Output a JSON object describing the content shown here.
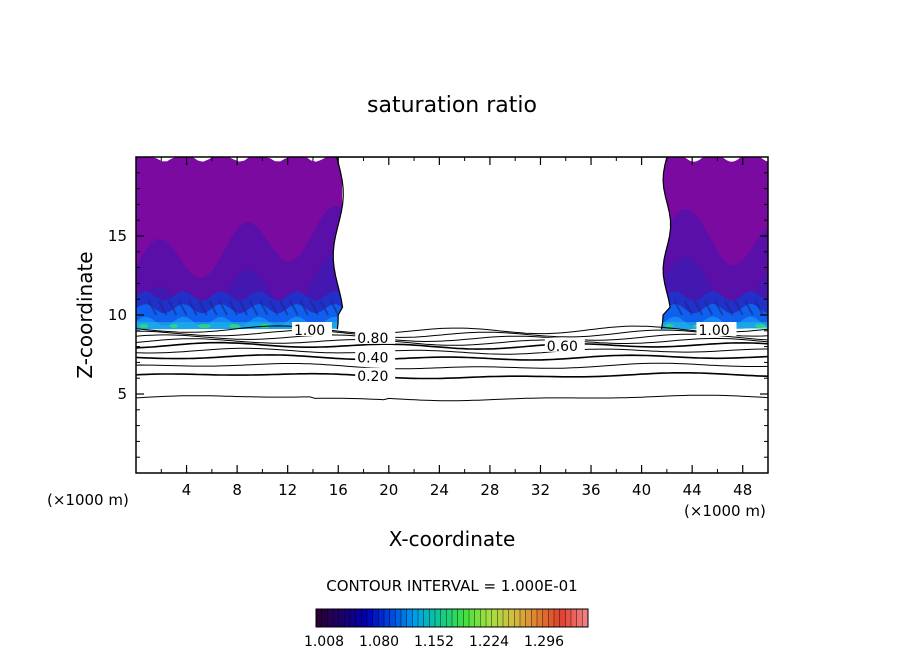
{
  "chart_data": {
    "type": "contour",
    "title": "saturation ratio",
    "xlabel": "X-coordinate",
    "ylabel": "Z-coordinate",
    "x_unit_left": "(×1000 m)",
    "x_unit_right": "(×1000 m)",
    "xlim": [
      0,
      50
    ],
    "ylim": [
      0,
      20
    ],
    "x_ticks": [
      4,
      8,
      12,
      16,
      20,
      24,
      28,
      32,
      36,
      40,
      44,
      48
    ],
    "y_ticks": [
      5,
      10,
      15
    ],
    "contour_interval_label": "CONTOUR INTERVAL = 1.000E-01",
    "contours": [
      {
        "level": 0.1,
        "label": "",
        "base_z": 4.75
      },
      {
        "level": 0.2,
        "label": "0.20",
        "label_x": 17.5,
        "base_z": 6.15
      },
      {
        "level": 0.3,
        "label": "",
        "base_z": 6.75
      },
      {
        "level": 0.4,
        "label": "0.40",
        "label_x": 17.5,
        "base_z": 7.3
      },
      {
        "level": 0.5,
        "label": "",
        "base_z": 7.7
      },
      {
        "level": 0.6,
        "label": "0.60",
        "label_x": 32.5,
        "base_z": 8.05
      },
      {
        "level": 0.7,
        "label": "",
        "base_z": 8.3
      },
      {
        "level": 0.8,
        "label": "0.80",
        "label_x": 17.5,
        "base_z": 8.55
      },
      {
        "level": 0.9,
        "label": "",
        "base_z": 8.8
      },
      {
        "level": 1.0,
        "label": "1.00",
        "label_x": 12.5,
        "base_z": 9.05
      },
      {
        "level": 1.0,
        "label": "1.00",
        "label_x": 44.5,
        "base_z": 9.05
      }
    ],
    "filled_regions": [
      {
        "name": "left supersaturated region",
        "x_range": [
          0,
          16
        ],
        "z_range": [
          9.1,
          20
        ]
      },
      {
        "name": "right supersaturated region",
        "x_range": [
          42,
          50
        ],
        "z_range": [
          9.1,
          20
        ]
      }
    ],
    "colorbar": {
      "tick_labels": [
        "1.008",
        "1.080",
        "1.152",
        "1.224",
        "1.296"
      ],
      "colors": [
        "#2a0038",
        "#1a006e",
        "#0000b4",
        "#0048e0",
        "#00a0e8",
        "#10c890",
        "#40e040",
        "#a0e040",
        "#d0c040",
        "#e08030",
        "#e04030",
        "#f08080"
      ]
    },
    "colors": {
      "deep_purple": "#7a0aa0",
      "mid_purple": "#5a10a8",
      "blue": "#2030c8",
      "bright_blue": "#1060f0",
      "cyan": "#20c0e0",
      "green": "#30e070",
      "line": "#000000"
    }
  }
}
